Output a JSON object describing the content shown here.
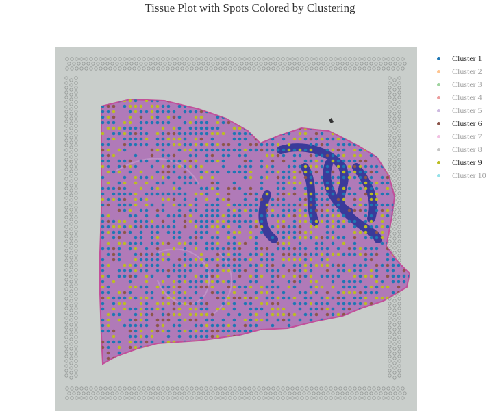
{
  "chart_data": {
    "type": "scatter",
    "title": "Tissue Plot with Spots Colored by Clustering",
    "background": "H&E-stained tissue section image with fiducial spot frame",
    "series": [
      {
        "name": "Cluster 1",
        "color": "#1f77b4",
        "visible": true
      },
      {
        "name": "Cluster 2",
        "color": "#ff7f0e",
        "visible": false
      },
      {
        "name": "Cluster 3",
        "color": "#2ca02c",
        "visible": false
      },
      {
        "name": "Cluster 4",
        "color": "#d62728",
        "visible": false
      },
      {
        "name": "Cluster 5",
        "color": "#9467bd",
        "visible": false
      },
      {
        "name": "Cluster 6",
        "color": "#8c564b",
        "visible": true
      },
      {
        "name": "Cluster 7",
        "color": "#e377c2",
        "visible": false
      },
      {
        "name": "Cluster 8",
        "color": "#7f7f7f",
        "visible": false
      },
      {
        "name": "Cluster 9",
        "color": "#bcbd22",
        "visible": true
      },
      {
        "name": "Cluster 10",
        "color": "#17becf",
        "visible": false
      }
    ],
    "legend_position": "right",
    "grid": false
  }
}
